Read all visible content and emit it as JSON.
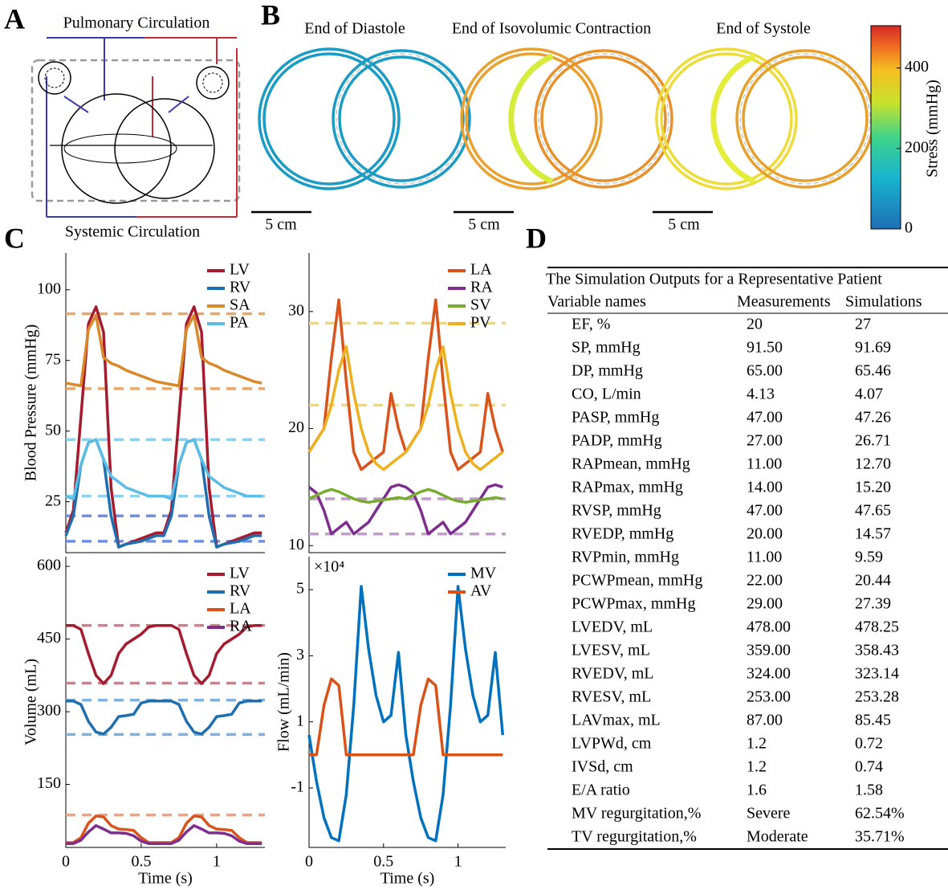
{
  "panels": {
    "labels": [
      "A",
      "B",
      "C",
      "D"
    ]
  },
  "diagram": {
    "top_label": "Pulmonary Circulation",
    "bottom_label": "Systemic Circulation"
  },
  "stress_maps": {
    "titles": [
      "End of Diastole",
      "End of Isovolumic Contraction",
      "End of Systole"
    ],
    "scale_bar_labels": [
      "5 cm",
      "5 cm",
      "5 cm"
    ],
    "colorbar": {
      "label": "Stress (mmHg)",
      "lim": [
        0,
        505
      ],
      "ticks": [
        0,
        200,
        400
      ]
    }
  },
  "chart_data": [
    {
      "type": "line",
      "ylabel": "Blood Pressure (mmHg)",
      "xlim": [
        0,
        1.32
      ],
      "ylim": [
        7,
        113
      ],
      "yticks": [
        25,
        50,
        75,
        100
      ],
      "legend": "upper right",
      "x": [
        0,
        0.05,
        0.1,
        0.15,
        0.2,
        0.25,
        0.3,
        0.35,
        0.4,
        0.45,
        0.5,
        0.55,
        0.6,
        0.65,
        0.7,
        0.75,
        0.8,
        0.85,
        0.9,
        0.95,
        1,
        1.05,
        1.1,
        1.15,
        1.2,
        1.25,
        1.3
      ],
      "series": [
        {
          "name": "LV",
          "color": "#a51c30",
          "values": [
            14,
            22,
            55,
            88,
            94,
            85,
            30,
            9,
            10,
            11,
            12,
            13,
            14,
            14,
            22,
            55,
            88,
            94,
            85,
            30,
            9,
            10,
            11,
            12,
            13,
            14,
            14
          ]
        },
        {
          "name": "RV",
          "color": "#1f6fb0",
          "values": [
            13,
            20,
            38,
            46,
            47,
            40,
            20,
            9,
            10,
            10.5,
            11,
            12,
            13,
            13,
            20,
            38,
            46,
            47,
            40,
            20,
            9,
            10,
            10.5,
            11,
            12,
            13,
            13
          ]
        },
        {
          "name": "SA",
          "color": "#d9892a",
          "values": [
            67,
            66.5,
            66,
            86,
            91,
            76,
            74,
            73,
            71.5,
            70.5,
            69.5,
            68.5,
            67.5,
            67,
            66.5,
            66,
            86,
            91,
            76,
            74,
            73,
            71.5,
            70.5,
            69.5,
            68.5,
            67.5,
            67
          ]
        },
        {
          "name": "PA",
          "color": "#5bbce4",
          "values": [
            27,
            26,
            38,
            46,
            47,
            40,
            34,
            32,
            30,
            29,
            28,
            27,
            27,
            27,
            26,
            38,
            46,
            47,
            40,
            34,
            32,
            30,
            29,
            28,
            27,
            27,
            27
          ]
        }
      ],
      "ref_lines": [
        {
          "color": "#e8a86b",
          "values": [
            91.5,
            65
          ]
        },
        {
          "color": "#8fd0ee",
          "values": [
            47,
            27
          ]
        },
        {
          "color": "#6f8fe0",
          "values": [
            20,
            11
          ]
        }
      ]
    },
    {
      "type": "line",
      "xlim": [
        0,
        1.32
      ],
      "ylim": [
        9.4,
        35
      ],
      "yticks": [
        10,
        20,
        30
      ],
      "legend": "upper right",
      "x": [
        0,
        0.05,
        0.1,
        0.15,
        0.2,
        0.25,
        0.3,
        0.35,
        0.4,
        0.45,
        0.5,
        0.55,
        0.6,
        0.65,
        0.7,
        0.75,
        0.8,
        0.85,
        0.9,
        0.95,
        1,
        1.05,
        1.1,
        1.15,
        1.2,
        1.25,
        1.3
      ],
      "series": [
        {
          "name": "LA",
          "color": "#d9541c",
          "values": [
            18,
            19,
            20,
            26,
            31,
            24,
            18,
            16.5,
            17,
            17.5,
            18,
            23,
            20,
            18,
            19,
            20,
            26,
            31,
            24,
            18,
            16.5,
            17,
            17.5,
            18,
            23,
            20,
            18
          ]
        },
        {
          "name": "RA",
          "color": "#7e2f8e",
          "values": [
            15,
            14.5,
            13,
            11,
            11.5,
            12,
            11,
            11.5,
            12,
            13,
            14,
            15,
            15.2,
            15,
            14.5,
            13,
            11,
            11.5,
            12,
            11,
            11.5,
            12,
            13,
            14,
            15,
            15.2,
            15
          ]
        },
        {
          "name": "SV",
          "color": "#77ac30",
          "values": [
            14,
            14.3,
            14.6,
            14.8,
            14.6,
            14.3,
            14,
            13.8,
            13.7,
            13.8,
            13.9,
            14,
            14.1,
            14,
            14.3,
            14.6,
            14.8,
            14.6,
            14.3,
            14,
            13.8,
            13.7,
            13.8,
            13.9,
            14,
            14.1,
            14
          ]
        },
        {
          "name": "PV",
          "color": "#edb120",
          "values": [
            18,
            19,
            20,
            22,
            25,
            27,
            23,
            20,
            18,
            17,
            16.5,
            17,
            17.5,
            18,
            19,
            20,
            22,
            25,
            27,
            23,
            20,
            18,
            17,
            16.5,
            17,
            17.5,
            18
          ]
        }
      ],
      "ref_lines": [
        {
          "color": "#f3d67a",
          "values": [
            29,
            22
          ]
        },
        {
          "color": "#c49ad0",
          "values": [
            14,
            11
          ]
        }
      ]
    },
    {
      "type": "line",
      "ylabel": "Volume (mL)",
      "xlabel": "Time (s)",
      "xlim": [
        0,
        1.32
      ],
      "ylim": [
        20,
        620
      ],
      "yticks": [
        150,
        300,
        450,
        600
      ],
      "xticks": [
        0,
        0.5,
        1
      ],
      "legend": "upper right",
      "x": [
        0,
        0.05,
        0.1,
        0.15,
        0.2,
        0.25,
        0.3,
        0.35,
        0.4,
        0.45,
        0.5,
        0.55,
        0.6,
        0.65,
        0.7,
        0.75,
        0.8,
        0.85,
        0.9,
        0.95,
        1,
        1.05,
        1.1,
        1.15,
        1.2,
        1.25,
        1.3
      ],
      "series": [
        {
          "name": "LV",
          "color": "#a51c30",
          "values": [
            478,
            478,
            470,
            420,
            375,
            358,
            375,
            420,
            440,
            450,
            460,
            475,
            478,
            478,
            478,
            470,
            420,
            375,
            358,
            375,
            420,
            440,
            450,
            460,
            475,
            478,
            478
          ]
        },
        {
          "name": "RV",
          "color": "#1f6fb0",
          "values": [
            322,
            322,
            315,
            280,
            258,
            254,
            268,
            290,
            292,
            295,
            318,
            322,
            322,
            322,
            322,
            315,
            280,
            258,
            254,
            268,
            290,
            292,
            295,
            318,
            322,
            322,
            322
          ]
        },
        {
          "name": "LA",
          "color": "#d9541c",
          "values": [
            30,
            30,
            40,
            70,
            85,
            83,
            65,
            58,
            57,
            55,
            40,
            30,
            30,
            30,
            30,
            40,
            70,
            85,
            83,
            65,
            58,
            57,
            55,
            40,
            30,
            30,
            30
          ]
        },
        {
          "name": "RA",
          "color": "#7e2f8e",
          "values": [
            28,
            28,
            35,
            52,
            65,
            58,
            50,
            50,
            49,
            44,
            33,
            28,
            28,
            28,
            28,
            35,
            52,
            65,
            58,
            50,
            50,
            49,
            44,
            33,
            28,
            28,
            28
          ]
        }
      ],
      "ref_lines": [
        {
          "color": "#d07f8c",
          "values": [
            478,
            359
          ]
        },
        {
          "color": "#7fb1dc",
          "values": [
            324,
            253
          ]
        },
        {
          "color": "#f0a27f",
          "values": [
            87
          ]
        }
      ]
    },
    {
      "type": "line",
      "ylabel": "Flow (mL/min)",
      "xlabel": "Time (s)",
      "annotation": "×10⁴",
      "xlim": [
        0,
        1.32
      ],
      "ylim": [
        -2.8,
        6
      ],
      "yticks": [
        -1,
        1,
        3,
        5
      ],
      "xticks": [
        0,
        0.5,
        1
      ],
      "legend": "upper right",
      "x": [
        0,
        0.05,
        0.1,
        0.15,
        0.2,
        0.25,
        0.3,
        0.35,
        0.4,
        0.45,
        0.5,
        0.55,
        0.6,
        0.65,
        0.7,
        0.75,
        0.8,
        0.85,
        0.9,
        0.95,
        1,
        1.05,
        1.1,
        1.15,
        1.2,
        1.25,
        1.3
      ],
      "series": [
        {
          "name": "MV",
          "color": "#0072bd",
          "values": [
            0.6,
            -0.8,
            -1.9,
            -2.5,
            -2.6,
            -1.2,
            1.5,
            5.1,
            3.2,
            1.8,
            1,
            1.2,
            3.1,
            0.6,
            -0.8,
            -1.9,
            -2.5,
            -2.6,
            -1.2,
            1.5,
            5.1,
            3.2,
            1.8,
            1,
            1.2,
            3.1,
            0.6
          ]
        },
        {
          "name": "AV",
          "color": "#d95319",
          "values": [
            0,
            0,
            1.5,
            2.3,
            2.1,
            0,
            0,
            0,
            0,
            0,
            0,
            0,
            0,
            0,
            0,
            1.5,
            2.3,
            2.1,
            0,
            0,
            0,
            0,
            0,
            0,
            0,
            0,
            0
          ]
        }
      ]
    }
  ],
  "table": {
    "title": "The Simulation Outputs for a Representative Patient",
    "header": [
      "Variable names",
      "Measurements",
      "Simulations"
    ],
    "rows": [
      [
        "EF, %",
        "20",
        "27"
      ],
      [
        "SP, mmHg",
        "91.50",
        "91.69"
      ],
      [
        "DP, mmHg",
        "65.00",
        "65.46"
      ],
      [
        "CO, L/min",
        "4.13",
        "4.07"
      ],
      [
        "PASP, mmHg",
        "47.00",
        "47.26"
      ],
      [
        "PADP, mmHg",
        "27.00",
        "26.71"
      ],
      [
        "RAPmean, mmHg",
        "11.00",
        "12.70"
      ],
      [
        "RAPmax, mmHg",
        "14.00",
        "15.20"
      ],
      [
        "RVSP, mmHg",
        "47.00",
        "47.65"
      ],
      [
        "RVEDP, mmHg",
        "20.00",
        "14.57"
      ],
      [
        "RVPmin, mmHg",
        "11.00",
        "9.59"
      ],
      [
        "PCWPmean, mmHg",
        "22.00",
        "20.44"
      ],
      [
        "PCWPmax, mmHg",
        "29.00",
        "27.39"
      ],
      [
        "LVEDV, mL",
        "478.00",
        "478.25"
      ],
      [
        "LVESV, mL",
        "359.00",
        "358.43"
      ],
      [
        "RVEDV, mL",
        "324.00",
        "323.14"
      ],
      [
        "RVESV, mL",
        "253.00",
        "253.28"
      ],
      [
        "LAVmax, mL",
        "87.00",
        "85.45"
      ],
      [
        "LVPWd, cm",
        "1.2",
        "0.72"
      ],
      [
        "IVSd, cm",
        "1.2",
        "0.74"
      ],
      [
        "E/A ratio",
        "1.6",
        "1.58"
      ],
      [
        "MV regurgitation,%",
        "Severe",
        "62.54%"
      ],
      [
        "TV regurgitation,%",
        "Moderate",
        "35.71%"
      ]
    ]
  }
}
